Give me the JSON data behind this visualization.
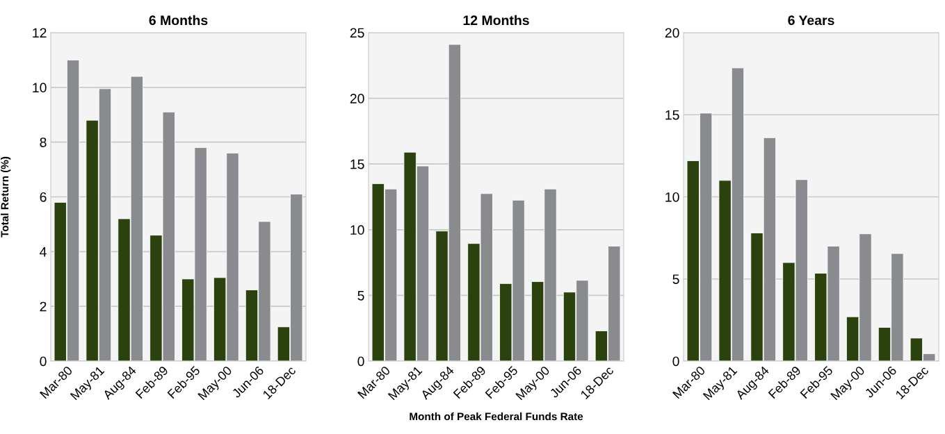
{
  "chart_data": [
    {
      "type": "bar",
      "title": "6 Months",
      "ylabel": "Total Return (%)",
      "categories": [
        "Mar-80",
        "May-81",
        "Aug-84",
        "Feb-89",
        "Feb-95",
        "May-00",
        "Jun-06",
        "18-Dec"
      ],
      "series": [
        {
          "color": "#2c420e",
          "values": [
            5.8,
            8.8,
            5.2,
            4.6,
            3.0,
            3.05,
            2.6,
            1.25
          ]
        },
        {
          "color": "#898b8f",
          "values": [
            11.0,
            9.95,
            10.4,
            9.1,
            7.8,
            7.6,
            5.1,
            6.1
          ]
        }
      ],
      "ylim": [
        0,
        12
      ],
      "yticks": [
        0,
        2,
        4,
        6,
        8,
        10,
        12
      ],
      "grid": "y"
    },
    {
      "type": "bar",
      "title": "12 Months",
      "xlabel": "Month of Peak Federal Funds Rate",
      "categories": [
        "Mar-80",
        "May-81",
        "Aug-84",
        "Feb-89",
        "Feb-95",
        "May-00",
        "Jun-06",
        "18-Dec"
      ],
      "series": [
        {
          "color": "#2c420e",
          "values": [
            13.5,
            15.9,
            9.9,
            8.95,
            5.9,
            6.05,
            5.25,
            2.3
          ]
        },
        {
          "color": "#898b8f",
          "values": [
            13.1,
            14.85,
            24.1,
            12.75,
            12.25,
            13.1,
            6.15,
            8.75
          ]
        }
      ],
      "ylim": [
        0,
        25
      ],
      "yticks": [
        0,
        5,
        10,
        15,
        20,
        25
      ],
      "grid": "y"
    },
    {
      "type": "bar",
      "title": "6 Years",
      "categories": [
        "Mar-80",
        "May-81",
        "Aug-84",
        "Feb-89",
        "Feb-95",
        "May-00",
        "Jun-06",
        "18-Dec"
      ],
      "series": [
        {
          "color": "#2c420e",
          "values": [
            12.2,
            11.0,
            7.8,
            6.0,
            5.35,
            2.7,
            2.05,
            1.4
          ]
        },
        {
          "color": "#898b8f",
          "values": [
            15.1,
            17.85,
            13.6,
            11.05,
            7.0,
            7.75,
            6.55,
            0.45
          ]
        }
      ],
      "ylim": [
        0,
        20
      ],
      "yticks": [
        0,
        5,
        10,
        15,
        20
      ],
      "grid": "y"
    }
  ]
}
